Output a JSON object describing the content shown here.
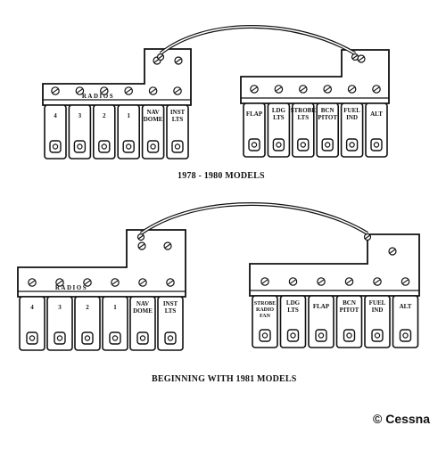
{
  "captions": {
    "top": "1978 - 1980 MODELS",
    "bottom": "BEGINNING WITH 1981 MODELS"
  },
  "copyright": "© Cessna",
  "top_panel": {
    "group_label": "RADIOS",
    "left_breakers": [
      {
        "label": "4"
      },
      {
        "label": "3"
      },
      {
        "label": "2"
      },
      {
        "label": "1"
      },
      {
        "label": "NAV DOME"
      },
      {
        "label": "INST LTS"
      }
    ],
    "right_breakers": [
      {
        "label": "FLAP"
      },
      {
        "label": "LDG LTS"
      },
      {
        "label": "STROBE LTS"
      },
      {
        "label": "BCN PITOT"
      },
      {
        "label": "FUEL IND"
      },
      {
        "label": "ALT"
      }
    ]
  },
  "bottom_panel": {
    "group_label": "RADIOS",
    "left_breakers": [
      {
        "label": "4"
      },
      {
        "label": "3"
      },
      {
        "label": "2"
      },
      {
        "label": "1"
      },
      {
        "label": "NAV DOME"
      },
      {
        "label": "INST LTS"
      }
    ],
    "right_breakers": [
      {
        "label": "STROBE RADIO FAN"
      },
      {
        "label": "LDG LTS"
      },
      {
        "label": "FLAP"
      },
      {
        "label": "BCN PITOT"
      },
      {
        "label": "FUEL IND"
      },
      {
        "label": "ALT"
      }
    ]
  }
}
